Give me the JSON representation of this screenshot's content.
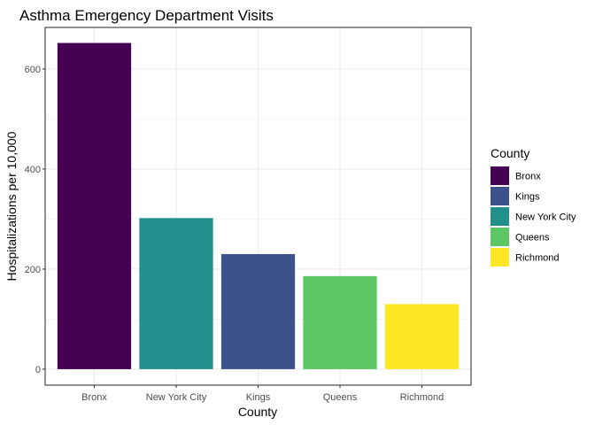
{
  "chart_data": {
    "type": "bar",
    "title": "Asthma Emergency Department Visits",
    "xlabel": "County",
    "ylabel": "Hospitalizations per 10,000",
    "categories": [
      "Bronx",
      "New York City",
      "Kings",
      "Queens",
      "Richmond"
    ],
    "values": [
      652,
      302,
      230,
      186,
      130
    ],
    "colors": [
      "#440154",
      "#21908C",
      "#3B528B",
      "#5DC863",
      "#FDE725"
    ],
    "ylim": [
      0,
      680
    ],
    "yticks": [
      0,
      200,
      400,
      600
    ],
    "grid": true,
    "legend": {
      "title": "County",
      "position": "right",
      "items": [
        {
          "label": "Bronx",
          "color": "#440154"
        },
        {
          "label": "Kings",
          "color": "#3B528B"
        },
        {
          "label": "New York City",
          "color": "#21908C"
        },
        {
          "label": "Queens",
          "color": "#5DC863"
        },
        {
          "label": "Richmond",
          "color": "#FDE725"
        }
      ]
    }
  }
}
